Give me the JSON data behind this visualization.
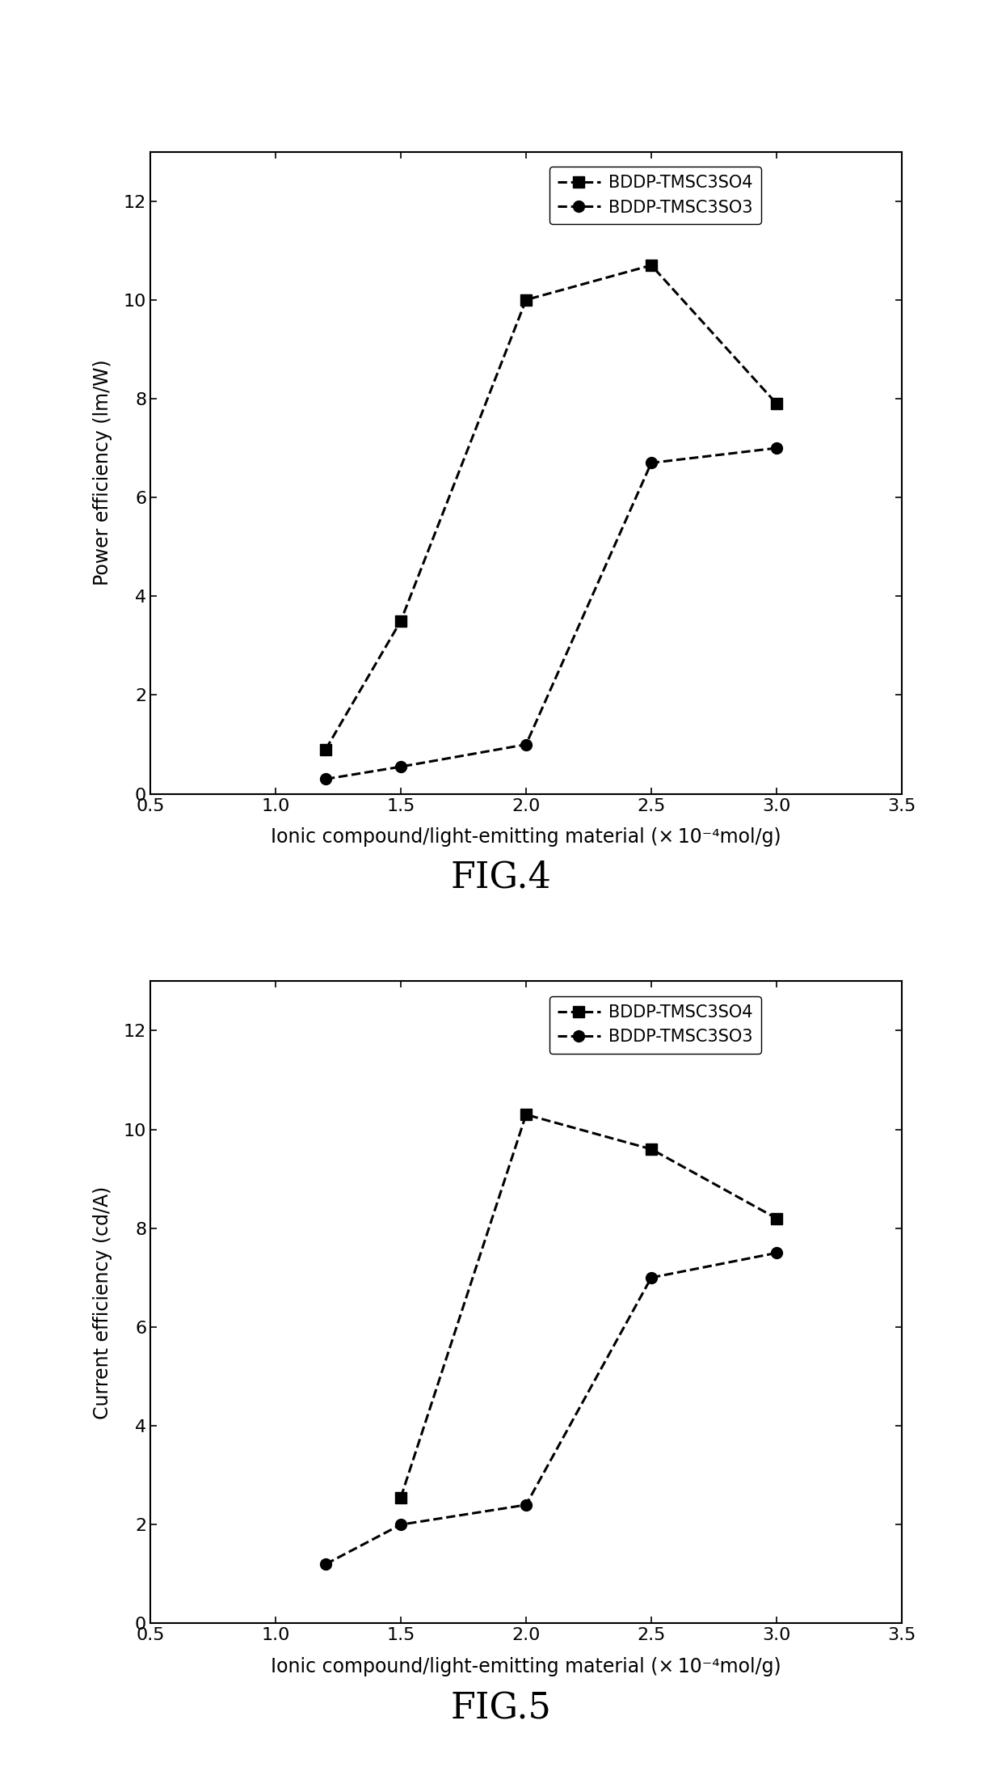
{
  "fig4": {
    "title": "FIG.4",
    "ylabel": "Power efficiency (lm/W)",
    "xlabel": "Ionic compound/light-emitting material (× 10⁻⁴mol/g)",
    "xlim": [
      0.5,
      3.5
    ],
    "ylim": [
      0,
      13
    ],
    "xticks": [
      0.5,
      1.0,
      1.5,
      2.0,
      2.5,
      3.0,
      3.5
    ],
    "xtick_labels": [
      "0.5",
      "1.0",
      "1.5",
      "2.0",
      "2.5",
      "3.0",
      "3.5"
    ],
    "yticks": [
      0,
      2,
      4,
      6,
      8,
      10,
      12
    ],
    "series1_label": "BDDP-TMSC3SO4",
    "series1_x": [
      1.2,
      1.5,
      2.0,
      2.5,
      3.0
    ],
    "series1_y": [
      0.9,
      3.5,
      10.0,
      10.7,
      7.9
    ],
    "series2_label": "BDDP-TMSC3SO3",
    "series2_x": [
      1.2,
      1.5,
      2.0,
      2.5,
      3.0
    ],
    "series2_y": [
      0.3,
      0.55,
      1.0,
      6.7,
      7.0
    ]
  },
  "fig5": {
    "title": "FIG.5",
    "ylabel": "Current efficiency (cd/A)",
    "xlabel": "Ionic compound/light-emitting material (× 10⁻⁴mol/g)",
    "xlim": [
      0.5,
      3.5
    ],
    "ylim": [
      0,
      13
    ],
    "xticks": [
      0.5,
      1.0,
      1.5,
      2.0,
      2.5,
      3.0,
      3.5
    ],
    "xtick_labels": [
      "0.5",
      "1.0",
      "1.5",
      "2.0",
      "2.5",
      "3.0",
      "3.5"
    ],
    "yticks": [
      0,
      2,
      4,
      6,
      8,
      10,
      12
    ],
    "series1_label": "BDDP-TMSC3SO4",
    "series1_x": [
      1.5,
      2.0,
      2.5,
      3.0
    ],
    "series1_y": [
      2.55,
      10.3,
      9.6,
      8.2
    ],
    "series2_label": "BDDP-TMSC3SO3",
    "series2_x": [
      1.2,
      1.5,
      2.0,
      2.5,
      3.0
    ],
    "series2_y": [
      1.2,
      2.0,
      2.4,
      7.0,
      7.5
    ]
  },
  "line_color": "#000000",
  "marker_square": "s",
  "marker_circle": "o",
  "marker_size": 10,
  "line_style": "--",
  "line_width": 2.2,
  "font_size_title": 32,
  "font_size_axis_label": 17,
  "font_size_tick": 16,
  "font_size_legend": 15,
  "background_color": "#ffffff"
}
